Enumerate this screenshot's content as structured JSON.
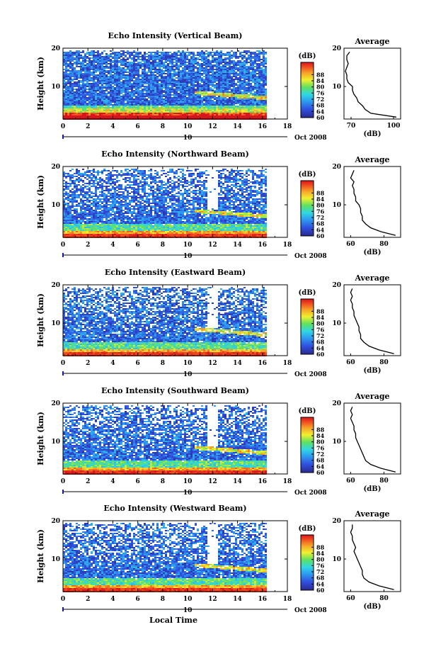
{
  "figure": {
    "xlabel": "Local Time",
    "date_label": "Oct 2008",
    "date_tick": "10",
    "ylabel": "Height (km)",
    "colorbar_unit": "(dB)",
    "average_title": "Average",
    "average_xlabel": "(dB)"
  },
  "chart_data": [
    {
      "type": "heatmap",
      "title": "Echo Intensity (Vertical Beam)",
      "x_range": [
        0,
        18
      ],
      "x_ticks": [
        0,
        2,
        4,
        6,
        8,
        10,
        12,
        14,
        16,
        18
      ],
      "y_range": [
        1.5,
        20
      ],
      "y_ticks": [
        10,
        20
      ],
      "data_extent_hours": [
        0,
        16.2
      ],
      "color_range_db": [
        60,
        96
      ],
      "colorbar_ticks": [
        60,
        64,
        68,
        72,
        76,
        80,
        84,
        88
      ],
      "profile": {
        "x_range": [
          65,
          105
        ],
        "x_ticks": [
          70,
          100
        ],
        "heights": [
          2,
          3,
          4,
          5,
          6,
          7,
          8,
          9,
          10,
          11,
          12,
          13,
          14,
          15,
          16,
          17,
          18,
          19
        ],
        "values_db": [
          102,
          84,
          80,
          78,
          75,
          74,
          72,
          71,
          71,
          68,
          67,
          67,
          66,
          67,
          68,
          67,
          67,
          69
        ]
      }
    },
    {
      "type": "heatmap",
      "title": "Echo Intensity (Northward Beam)",
      "x_range": [
        0,
        18
      ],
      "x_ticks": [
        0,
        2,
        4,
        6,
        8,
        10,
        12,
        14,
        16,
        18
      ],
      "y_range": [
        1.5,
        20
      ],
      "y_ticks": [
        10,
        20
      ],
      "data_extent_hours": [
        0,
        16.2
      ],
      "color_range_db": [
        60,
        96
      ],
      "colorbar_ticks": [
        60,
        64,
        68,
        72,
        76,
        80,
        84,
        88
      ],
      "profile": {
        "x_range": [
          56,
          90
        ],
        "x_ticks": [
          60,
          80
        ],
        "heights": [
          2,
          3,
          4,
          5,
          6,
          7,
          8,
          9,
          10,
          11,
          12,
          13,
          14,
          15,
          16,
          17,
          18,
          19
        ],
        "values_db": [
          87,
          78,
          72,
          69,
          67,
          67,
          66,
          66,
          65,
          63,
          63,
          62,
          62,
          61,
          62,
          60,
          61,
          62
        ]
      }
    },
    {
      "type": "heatmap",
      "title": "Echo Intensity (Eastward Beam)",
      "x_range": [
        0,
        18
      ],
      "x_ticks": [
        0,
        2,
        4,
        6,
        8,
        10,
        12,
        14,
        16,
        18
      ],
      "y_range": [
        1.5,
        20
      ],
      "y_ticks": [
        10,
        20
      ],
      "data_extent_hours": [
        0,
        16.2
      ],
      "color_range_db": [
        60,
        96
      ],
      "colorbar_ticks": [
        60,
        64,
        68,
        72,
        76,
        80,
        84,
        88
      ],
      "profile": {
        "x_range": [
          56,
          90
        ],
        "x_ticks": [
          60,
          80
        ],
        "heights": [
          2,
          3,
          4,
          5,
          6,
          7,
          8,
          9,
          10,
          11,
          12,
          13,
          14,
          15,
          16,
          17,
          18,
          19
        ],
        "values_db": [
          86,
          77,
          71,
          68,
          66,
          66,
          65,
          65,
          64,
          63,
          62,
          62,
          61,
          61,
          60,
          61,
          60,
          61
        ]
      }
    },
    {
      "type": "heatmap",
      "title": "Echo Intensity (Southward Beam)",
      "x_range": [
        0,
        18
      ],
      "x_ticks": [
        0,
        2,
        4,
        6,
        8,
        10,
        12,
        14,
        16,
        18
      ],
      "y_range": [
        1.5,
        20
      ],
      "y_ticks": [
        10,
        20
      ],
      "data_extent_hours": [
        0,
        16.2
      ],
      "color_range_db": [
        60,
        96
      ],
      "colorbar_ticks": [
        60,
        64,
        68,
        72,
        76,
        80,
        84,
        88
      ],
      "profile": {
        "x_range": [
          56,
          90
        ],
        "x_ticks": [
          60,
          80
        ],
        "heights": [
          2,
          3,
          4,
          5,
          6,
          7,
          8,
          9,
          10,
          11,
          12,
          13,
          14,
          15,
          16,
          17,
          18,
          19
        ],
        "values_db": [
          87,
          78,
          72,
          69,
          68,
          67,
          66,
          65,
          64,
          63,
          63,
          62,
          62,
          61,
          60,
          61,
          60,
          61
        ]
      }
    },
    {
      "type": "heatmap",
      "title": "Echo Intensity (Westward Beam)",
      "x_range": [
        0,
        18
      ],
      "x_ticks": [
        0,
        2,
        4,
        6,
        8,
        10,
        12,
        14,
        16,
        18
      ],
      "y_range": [
        1.5,
        20
      ],
      "y_ticks": [
        10,
        20
      ],
      "data_extent_hours": [
        0,
        16.2
      ],
      "color_range_db": [
        60,
        96
      ],
      "colorbar_ticks": [
        60,
        64,
        68,
        72,
        76,
        80,
        84,
        88
      ],
      "profile": {
        "x_range": [
          56,
          90
        ],
        "x_ticks": [
          60,
          80
        ],
        "heights": [
          2,
          3,
          4,
          5,
          6,
          7,
          8,
          9,
          10,
          11,
          12,
          13,
          14,
          15,
          16,
          17,
          18,
          19
        ],
        "values_db": [
          86,
          77,
          71,
          68,
          67,
          67,
          66,
          65,
          64,
          63,
          62,
          63,
          62,
          61,
          61,
          60,
          61,
          61
        ]
      }
    }
  ]
}
